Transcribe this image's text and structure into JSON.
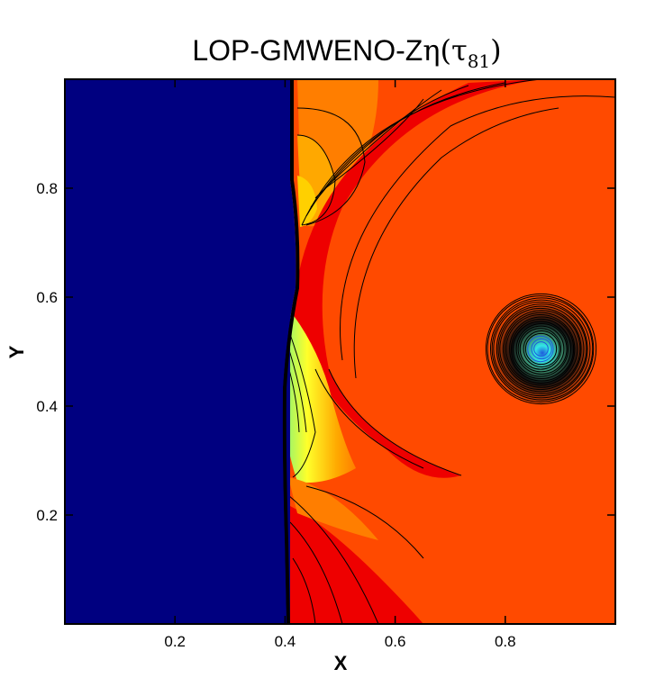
{
  "chart_data": {
    "type": "contour",
    "title": {
      "main": "LOP-GMWENO-Z",
      "symbol": "η(τ",
      "subscript": "81",
      "close": ")"
    },
    "xlabel": "X",
    "ylabel": "Y",
    "xlim": [
      0,
      1
    ],
    "ylim": [
      0,
      1
    ],
    "x_ticks": [
      {
        "value": 0.2,
        "label": "0.2"
      },
      {
        "value": 0.4,
        "label": "0.4"
      },
      {
        "value": 0.6,
        "label": "0.6"
      },
      {
        "value": 0.8,
        "label": "0.8"
      }
    ],
    "y_ticks": [
      {
        "value": 0.2,
        "label": "0.2"
      },
      {
        "value": 0.4,
        "label": "0.4"
      },
      {
        "value": 0.6,
        "label": "0.6"
      },
      {
        "value": 0.8,
        "label": "0.8"
      }
    ],
    "shock_x": 0.415,
    "vortex_center": [
      0.865,
      0.505
    ],
    "vortex_radius": 0.1,
    "colors": {
      "pre_shock": "#000080",
      "background": "#ff4a00",
      "deep_red": "#ee0000",
      "orange": "#ff7e00",
      "light_orange": "#ffa800",
      "yellow": "#ffff2a",
      "green": "#7df27d",
      "cyan": "#32e6e6",
      "blue": "#1e5adc"
    }
  }
}
